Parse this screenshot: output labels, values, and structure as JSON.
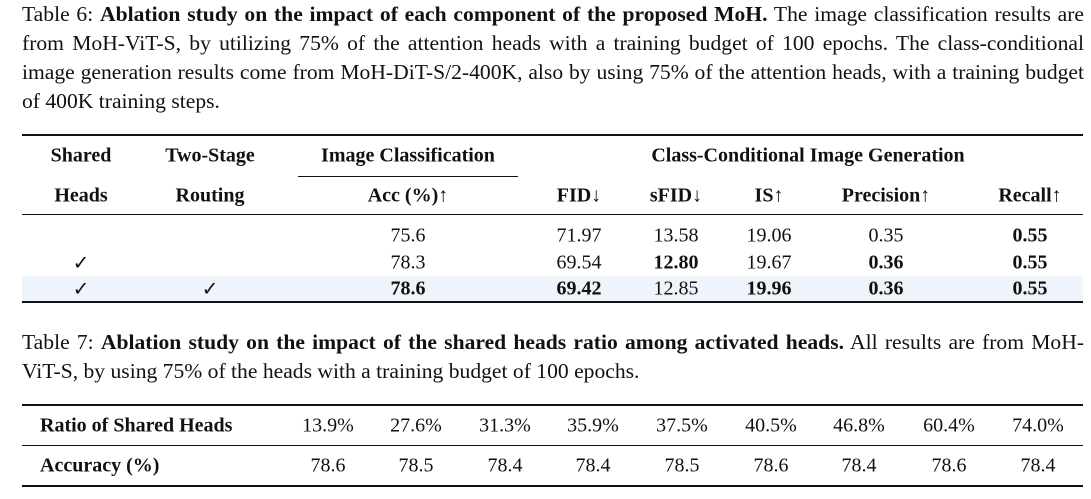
{
  "table6": {
    "caption_label": "Table 6:",
    "caption_bold": "Ablation study on the impact of each component of the proposed MoH.",
    "caption_text": "The image classification results are from MoH-ViT-S, by utilizing 75% of the attention heads with a training budget of 100 epochs. The class-conditional image generation results come from MoH-DiT-S/2-400K, also by using 75% of the attention heads, with a training budget of 400K training steps.",
    "header_top": [
      "Shared",
      "Two-Stage",
      "Image Classification",
      "Class-Conditional Image Generation"
    ],
    "header": [
      "Heads",
      "Routing",
      "Acc (%)↑",
      "FID↓",
      "sFID↓",
      "IS↑",
      "Precision↑",
      "Recall↑"
    ],
    "rows": [
      [
        null,
        null,
        "75.6",
        "71.97",
        "13.58",
        "19.06",
        "0.35",
        "0.55"
      ],
      [
        "✓",
        null,
        "78.3",
        "69.54",
        "12.80",
        "19.67",
        "0.36",
        "0.55"
      ],
      [
        "✓",
        "✓",
        "78.6",
        "69.42",
        "12.85",
        "19.96",
        "0.36",
        "0.55"
      ]
    ],
    "bold": [
      [
        7
      ],
      [
        4,
        6,
        7
      ],
      [
        2,
        3,
        5,
        6,
        7
      ]
    ],
    "highlight_row": 2
  },
  "table7": {
    "caption_label": "Table 7:",
    "caption_bold": "Ablation study on the impact of the shared heads ratio among activated heads.",
    "caption_text": "All results are from MoH-ViT-S, by using 75% of the heads with a training budget of 100 epochs.",
    "rows": [
      [
        "Ratio of Shared Heads",
        "13.9%",
        "27.6%",
        "31.3%",
        "35.9%",
        "37.5%",
        "40.5%",
        "46.8%",
        "60.4%",
        "74.0%"
      ],
      [
        "Accuracy (%)",
        "78.6",
        "78.5",
        "78.4",
        "78.4",
        "78.5",
        "78.6",
        "78.4",
        "78.6",
        "78.4"
      ]
    ]
  }
}
